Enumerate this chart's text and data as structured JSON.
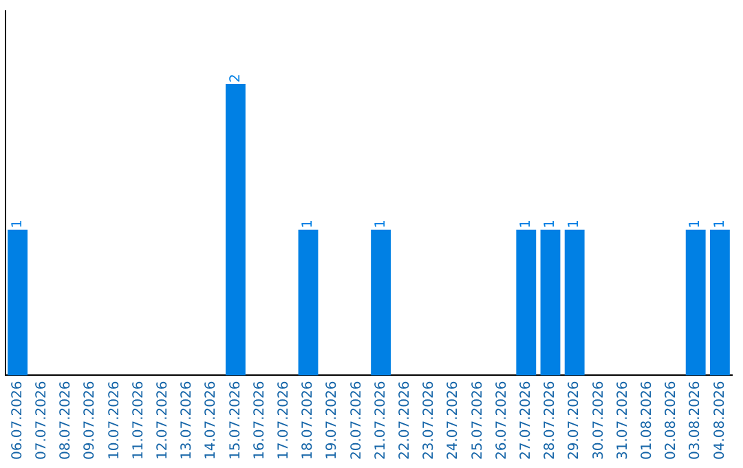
{
  "chart_data": {
    "type": "bar",
    "categories": [
      "06.07.2026",
      "07.07.2026",
      "08.07.2026",
      "09.07.2026",
      "10.07.2026",
      "11.07.2026",
      "12.07.2026",
      "13.07.2026",
      "14.07.2026",
      "15.07.2026",
      "16.07.2026",
      "17.07.2026",
      "18.07.2026",
      "19.07.2026",
      "20.07.2026",
      "21.07.2026",
      "22.07.2026",
      "23.07.2026",
      "24.07.2026",
      "25.07.2026",
      "26.07.2026",
      "27.07.2026",
      "28.07.2026",
      "29.07.2026",
      "30.07.2026",
      "31.07.2026",
      "01.08.2026",
      "02.08.2026",
      "03.08.2026",
      "04.08.2026"
    ],
    "values": [
      1,
      0,
      0,
      0,
      0,
      0,
      0,
      0,
      0,
      2,
      0,
      0,
      1,
      0,
      0,
      1,
      0,
      0,
      0,
      0,
      0,
      1,
      1,
      1,
      0,
      0,
      0,
      0,
      1,
      1
    ],
    "color": "#0080e4",
    "value_labels": [
      "1",
      null,
      null,
      null,
      null,
      null,
      null,
      null,
      null,
      "2",
      null,
      null,
      "1",
      null,
      null,
      "1",
      null,
      null,
      null,
      null,
      null,
      "1",
      "1",
      "1",
      null,
      null,
      null,
      null,
      "1",
      "1"
    ],
    "tick_labels": "x"
  }
}
